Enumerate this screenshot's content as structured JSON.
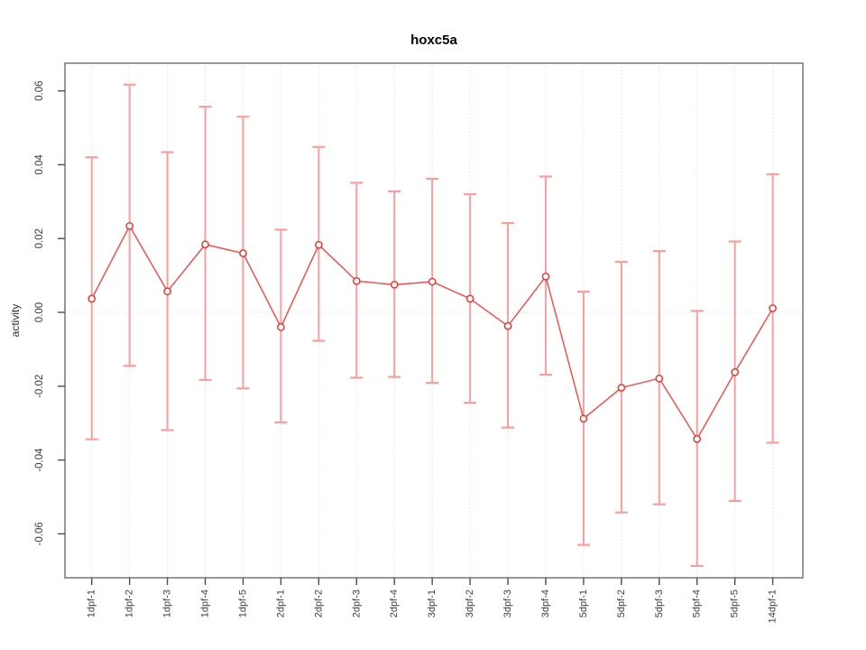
{
  "chart_data": {
    "type": "line",
    "title": "hoxc5a",
    "ylabel": "activity",
    "xlabel": "",
    "legend_position": "none",
    "grid": {
      "vertical_dotted_per_category": true,
      "horizontal_dotted_at_zero": true
    },
    "categories": [
      "1dpf-1",
      "1dpf-2",
      "1dpf-3",
      "1dpf-4",
      "1dpf-5",
      "2dpf-1",
      "2dpf-2",
      "2dpf-3",
      "2dpf-4",
      "3dpf-1",
      "3dpf-2",
      "3dpf-3",
      "3dpf-4",
      "5dpf-1",
      "5dpf-2",
      "5dpf-3",
      "5dpf-4",
      "5dpf-5",
      "14dpf-1"
    ],
    "series": [
      {
        "name": "activity",
        "values": [
          0.0037,
          0.0234,
          0.0057,
          0.0184,
          0.016,
          -0.004,
          0.0183,
          0.0085,
          0.0075,
          0.0083,
          0.0037,
          -0.0037,
          0.0097,
          -0.0288,
          -0.0204,
          -0.0179,
          -0.0343,
          -0.0162,
          0.0011
        ]
      }
    ],
    "error_bars": {
      "high": [
        0.042,
        0.0617,
        0.0434,
        0.0557,
        0.053,
        0.0224,
        0.0448,
        0.0351,
        0.0328,
        0.0362,
        0.032,
        0.0242,
        0.0368,
        0.0056,
        0.0137,
        0.0166,
        0.0004,
        0.0192,
        0.0374
      ],
      "low": [
        -0.0344,
        -0.0145,
        -0.0319,
        -0.0183,
        -0.0206,
        -0.0298,
        -0.0077,
        -0.0177,
        -0.0175,
        -0.0191,
        -0.0245,
        -0.0312,
        -0.0169,
        -0.063,
        -0.0542,
        -0.052,
        -0.0687,
        -0.0511,
        -0.0353
      ]
    },
    "ylim": [
      -0.0719,
      0.0675
    ],
    "yticks": [
      -0.06,
      -0.04,
      -0.02,
      0.0,
      0.02,
      0.04,
      0.06
    ],
    "ytick_labels": [
      "-0.06",
      "-0.04",
      "-0.02",
      "0.00",
      "0.02",
      "0.04",
      "0.06"
    ],
    "colors": {
      "point": "#e53935",
      "line": "#ef5350",
      "error_bar": "#f79e9e",
      "grid": "#d9d9d9",
      "box": "#8c8c8c",
      "tick": "#4d4d4d",
      "tick_label": "#3d3d3d",
      "title": "#000000"
    }
  }
}
